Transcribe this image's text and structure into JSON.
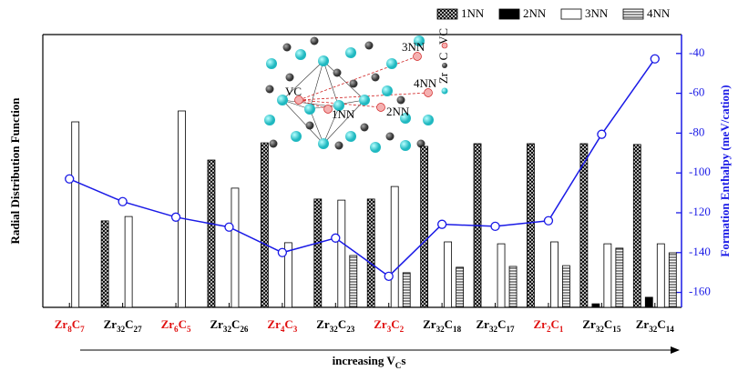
{
  "chart_data": {
    "type": "bar",
    "ylabel": "Radial Distribution Function",
    "y2label": "Formation Enthalpy (meV/cation)",
    "xlabel": "increasing VCs",
    "categories": [
      "Zr8C7",
      "Zr32C27",
      "Zr6C5",
      "Zr32C26",
      "Zr4C3",
      "Zr32C23",
      "Zr3C2",
      "Zr32C18",
      "Zr32C17",
      "Zr2C1",
      "Zr32C15",
      "Zr32C14"
    ],
    "category_colors": [
      "#e01010",
      "#000000",
      "#e01010",
      "#000000",
      "#e01010",
      "#000000",
      "#e01010",
      "#000000",
      "#000000",
      "#e01010",
      "#000000",
      "#000000"
    ],
    "ylim": [
      0,
      100
    ],
    "y2lim": [
      -30.5,
      -167.5
    ],
    "y2ticks": [
      -40,
      -60,
      -80,
      -100,
      -120,
      -140,
      -160
    ],
    "legend": "top-right",
    "series": [
      {
        "name": "1NN",
        "type": "bar",
        "fill": "crosshatch",
        "color": "#000000",
        "values": [
          null,
          31.7,
          null,
          54,
          60.3,
          39.7,
          39.7,
          59,
          60,
          60,
          60,
          59.7
        ]
      },
      {
        "name": "2NN",
        "type": "bar",
        "fill": "solid",
        "color": "#000000",
        "values": [
          null,
          null,
          null,
          null,
          null,
          null,
          null,
          null,
          null,
          null,
          1.3,
          3.7
        ]
      },
      {
        "name": "3NN",
        "type": "bar",
        "fill": "none",
        "color": "#000000",
        "values": [
          68,
          33.3,
          72,
          43.7,
          23.7,
          39.3,
          44.3,
          24,
          23.3,
          24,
          23.3,
          23.3
        ]
      },
      {
        "name": "4NN",
        "type": "bar",
        "fill": "hlines",
        "color": "#000000",
        "values": [
          null,
          null,
          null,
          null,
          null,
          19,
          12.7,
          14.7,
          15,
          15.3,
          21.7,
          20
        ]
      },
      {
        "type": "line",
        "axis": "y2",
        "color": "#1a1ae6",
        "values": [
          -103,
          -114.4,
          -122.2,
          -127.2,
          -140,
          -132.7,
          -151.9,
          -125.8,
          -126.8,
          -124,
          -80.6,
          -42.7
        ]
      }
    ]
  },
  "inset": {
    "labels": [
      "3NN",
      "4NN",
      "2NN",
      "1NN",
      "VC"
    ],
    "key": [
      "Zr",
      "C",
      "VC"
    ]
  }
}
